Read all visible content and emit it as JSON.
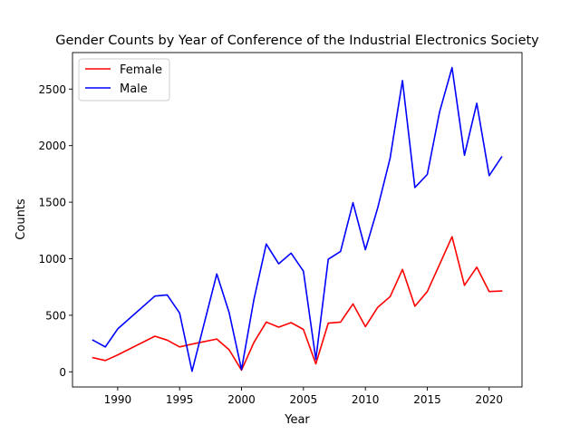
{
  "chart_data": {
    "type": "line",
    "title": "Gender Counts by Year of Conference of the Industrial Electronics Society",
    "xlabel": "Year",
    "ylabel": "Counts",
    "xlim": [
      1986.35,
      2022.65
    ],
    "ylim": [
      -134,
      2823
    ],
    "xticks": [
      1990,
      1995,
      2000,
      2005,
      2010,
      2015,
      2020
    ],
    "yticks": [
      0,
      500,
      1000,
      1500,
      2000,
      2500
    ],
    "legend_position": "upper left",
    "series": [
      {
        "name": "Female",
        "color": "#ff0000",
        "x": [
          1988,
          1989,
          1990,
          1993,
          1994,
          1995,
          1996,
          1998,
          1999,
          2000,
          2001,
          2002,
          2003,
          2004,
          2005,
          2006,
          2007,
          2008,
          2009,
          2010,
          2011,
          2012,
          2013,
          2014,
          2015,
          2016,
          2017,
          2018,
          2019,
          2020,
          2021
        ],
        "y": [
          125,
          100,
          150,
          315,
          280,
          220,
          245,
          290,
          195,
          15,
          260,
          440,
          395,
          435,
          375,
          70,
          430,
          440,
          600,
          400,
          570,
          665,
          905,
          580,
          710,
          950,
          1195,
          765,
          925,
          710,
          715
        ]
      },
      {
        "name": "Male",
        "color": "#0000ff",
        "x": [
          1988,
          1989,
          1990,
          1993,
          1994,
          1995,
          1996,
          1998,
          1999,
          2000,
          2001,
          2002,
          2003,
          2004,
          2005,
          2006,
          2007,
          2008,
          2009,
          2010,
          2011,
          2012,
          2013,
          2014,
          2015,
          2016,
          2017,
          2018,
          2019,
          2020,
          2021
        ],
        "y": [
          280,
          220,
          380,
          670,
          680,
          520,
          5,
          865,
          525,
          20,
          640,
          1130,
          955,
          1050,
          890,
          110,
          995,
          1065,
          1495,
          1080,
          1450,
          1890,
          2575,
          1630,
          1745,
          2300,
          2690,
          1915,
          2375,
          1735,
          1900
        ]
      }
    ]
  }
}
